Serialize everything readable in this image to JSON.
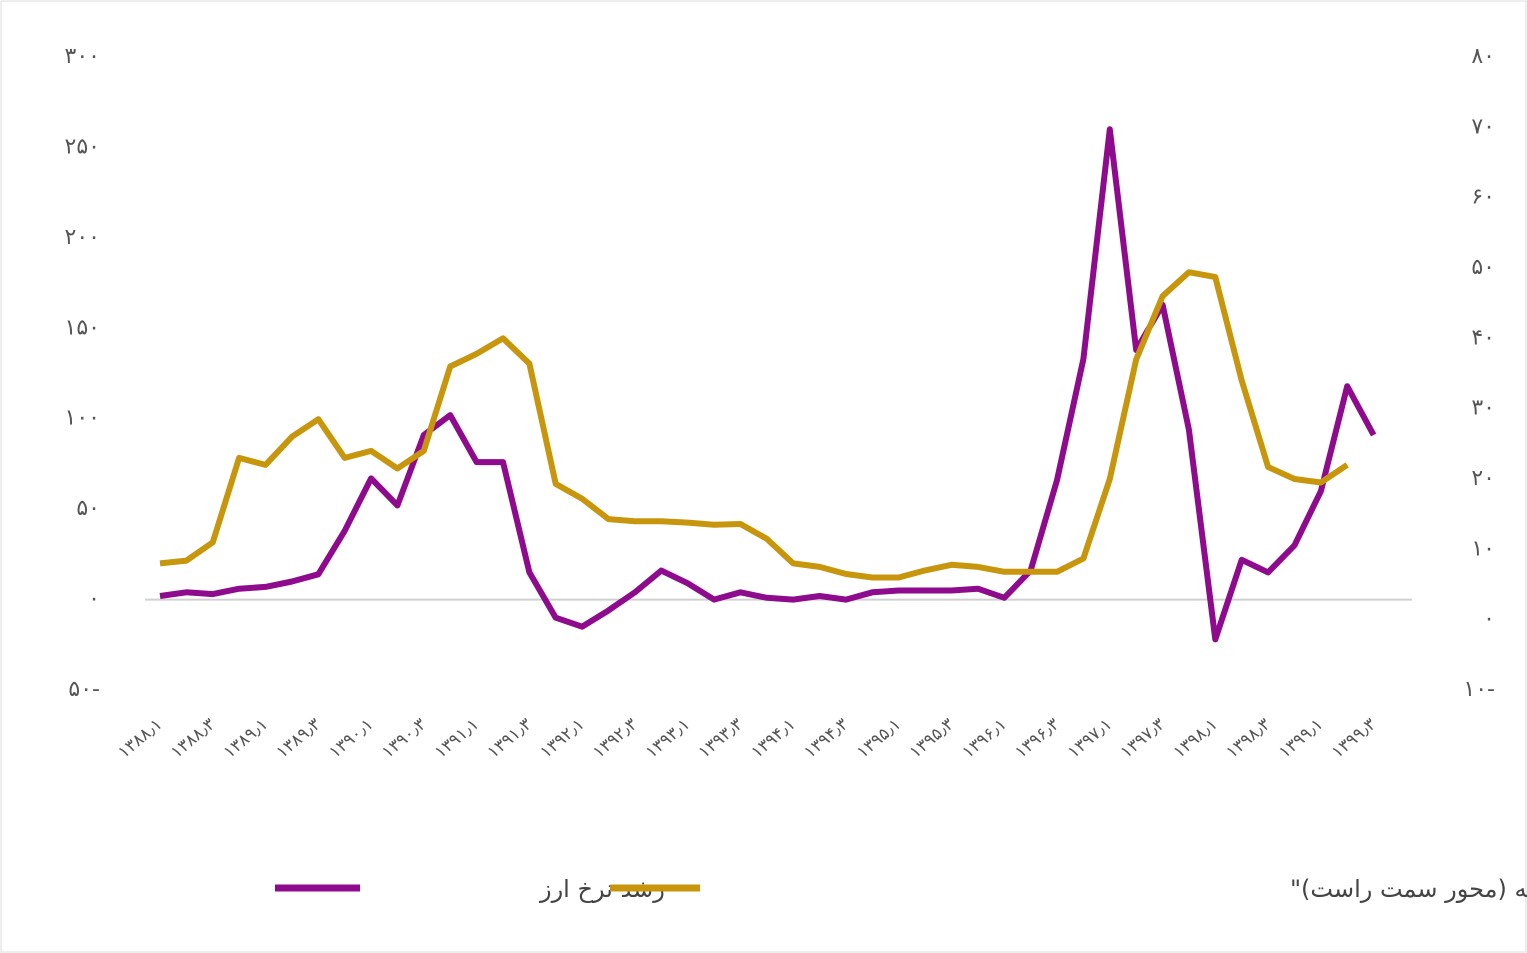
{
  "chart_data": {
    "type": "line",
    "categories": [
      "۱۳۸۸٫۱",
      null,
      "۱۳۸۸٫۳",
      null,
      "۱۳۸۹٫۱",
      null,
      "۱۳۸۹٫۳",
      null,
      "۱۳۹۰٫۱",
      null,
      "۱۳۹۰٫۳",
      null,
      "۱۳۹۱٫۱",
      null,
      "۱۳۹۱٫۳",
      null,
      "۱۳۹۲٫۱",
      null,
      "۱۳۹۲٫۳",
      null,
      "۱۳۹۳٫۱",
      null,
      "۱۳۹۳٫۳",
      null,
      "۱۳۹۴٫۱",
      null,
      "۱۳۹۴٫۳",
      null,
      "۱۳۹۵٫۱",
      null,
      "۱۳۹۵٫۳",
      null,
      "۱۳۹۶٫۱",
      null,
      "۱۳۹۶٫۳",
      null,
      "۱۳۹۷٫۱",
      null,
      "۱۳۹۷٫۳",
      null,
      "۱۳۹۸٫۱",
      null,
      "۱۳۹۸٫۳",
      null,
      "۱۳۹۹٫۱",
      null,
      "۱۳۹۹٫۳",
      null
    ],
    "series": [
      {
        "name": "رشد نرخ ارز",
        "color": "#8e0b8e",
        "values": [
          2,
          4,
          3,
          6,
          7,
          10,
          14,
          38,
          67,
          52,
          91,
          102,
          76,
          76,
          15,
          -10,
          -15,
          -6,
          4,
          16,
          9,
          0,
          4,
          1,
          0,
          2,
          0,
          4,
          5,
          5,
          5,
          6,
          1,
          16,
          66,
          133,
          260,
          138,
          163,
          94,
          -22,
          22,
          15,
          30,
          60,
          118,
          91,
          null
        ]
      },
      {
        "name": "\"تورم نقطه به نقطه (محور سمت راست)\"",
        "color": "#c8960c",
        "axis": "y2",
        "values": [
          8,
          8.4,
          11,
          23,
          22,
          26,
          28.5,
          23,
          24,
          21.5,
          24,
          36,
          37.8,
          40,
          36.4,
          19.3,
          17.2,
          14.3,
          14,
          14,
          13.8,
          13.5,
          13.6,
          11.5,
          8,
          7.5,
          6.5,
          6,
          6,
          7,
          7.8,
          7.5,
          6.8,
          6.8,
          6.8,
          8.7,
          20,
          37,
          46,
          49.4,
          48.7,
          34,
          21.7,
          20,
          19.5,
          22,
          null,
          null
        ]
      }
    ],
    "ylim": [
      -50,
      300
    ],
    "yticks": [
      {
        "value": -50,
        "label": "۵۰-"
      },
      {
        "value": 0,
        "label": "۰"
      },
      {
        "value": 50,
        "label": "۵۰"
      },
      {
        "value": 100,
        "label": "۱۰۰"
      },
      {
        "value": 150,
        "label": "۱۵۰"
      },
      {
        "value": 200,
        "label": "۲۰۰"
      },
      {
        "value": 250,
        "label": "۲۵۰"
      },
      {
        "value": 300,
        "label": "۳۰۰"
      }
    ],
    "y2lim": [
      -10,
      80
    ],
    "y2ticks": [
      {
        "value": -10,
        "label": "۱۰-"
      },
      {
        "value": 0,
        "label": "۰"
      },
      {
        "value": 10,
        "label": "۱۰"
      },
      {
        "value": 20,
        "label": "۲۰"
      },
      {
        "value": 30,
        "label": "۳۰"
      },
      {
        "value": 40,
        "label": "۴۰"
      },
      {
        "value": 50,
        "label": "۵۰"
      },
      {
        "value": 60,
        "label": "۶۰"
      },
      {
        "value": 70,
        "label": "۷۰"
      },
      {
        "value": 80,
        "label": "۸۰"
      }
    ],
    "legend": "bottom"
  }
}
